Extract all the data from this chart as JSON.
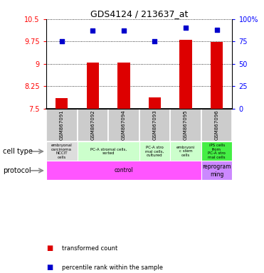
{
  "title": "GDS4124 / 213637_at",
  "samples": [
    "GSM867091",
    "GSM867092",
    "GSM867094",
    "GSM867093",
    "GSM867095",
    "GSM867096"
  ],
  "bar_values": [
    7.85,
    9.05,
    9.05,
    7.87,
    9.8,
    9.73
  ],
  "dot_values": [
    75,
    87,
    87,
    75,
    90,
    88
  ],
  "ylim_left": [
    7.5,
    10.5
  ],
  "ylim_right": [
    0,
    100
  ],
  "yticks_left": [
    7.5,
    8.25,
    9.0,
    9.75,
    10.5
  ],
  "yticks_right": [
    0,
    25,
    50,
    75,
    100
  ],
  "ytick_labels_left": [
    "7.5",
    "8.25",
    "9",
    "9.75",
    "10.5"
  ],
  "ytick_labels_right": [
    "0",
    "25",
    "50",
    "75",
    "100%"
  ],
  "hlines": [
    7.5,
    8.25,
    9.0,
    9.75,
    10.5
  ],
  "bar_color": "#dd0000",
  "dot_color": "#0000cc",
  "cell_types": [
    {
      "label": "embryonal\ncarcinoma\nNCCIT\ncells",
      "span": [
        0,
        1
      ],
      "color": "#dddddd"
    },
    {
      "label": "PC-A stromal cells,\nsorted",
      "span": [
        1,
        3
      ],
      "color": "#ccffcc"
    },
    {
      "label": "PC-A stro\nmal cells,\ncultured",
      "span": [
        3,
        4
      ],
      "color": "#ccffcc"
    },
    {
      "label": "embryoni\nc stem\ncells",
      "span": [
        4,
        5
      ],
      "color": "#ccffcc"
    },
    {
      "label": "iPS cells\nfrom\nPC-A stro\nmal cells",
      "span": [
        5,
        6
      ],
      "color": "#44ee44"
    }
  ],
  "protocol_groups": [
    {
      "label": "control",
      "span": [
        0,
        5
      ],
      "color": "#ff55ff"
    },
    {
      "label": "reprogram\nming",
      "span": [
        5,
        6
      ],
      "color": "#cc88ff"
    }
  ],
  "legend_items": [
    {
      "color": "#dd0000",
      "label": "transformed count"
    },
    {
      "color": "#0000cc",
      "label": "percentile rank within the sample"
    }
  ],
  "cell_type_label": "cell type",
  "protocol_label": "protocol",
  "bg_color": "#ffffff",
  "plot_bg_color": "#ffffff",
  "sample_box_color": "#cccccc"
}
